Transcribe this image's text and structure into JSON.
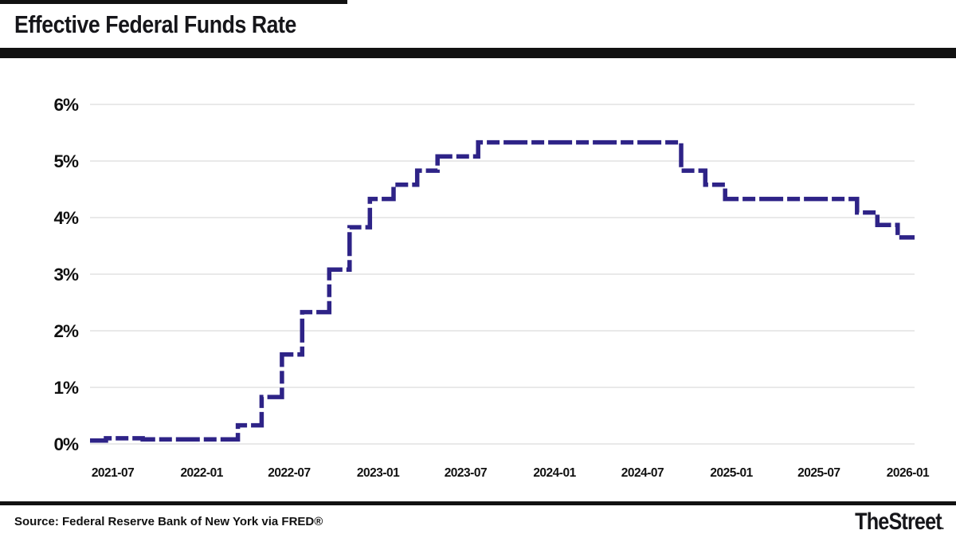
{
  "header": {
    "title": "Effective Federal Funds Rate"
  },
  "footer": {
    "source": "Source: Federal Reserve Bank of New York via FRED®",
    "brand": "TheStreet",
    "brand_dot": "."
  },
  "chart_data": {
    "type": "line",
    "step": true,
    "title": "Effective Federal Funds Rate",
    "xlabel": "",
    "ylabel": "",
    "ylim": [
      0,
      6
    ],
    "y_ticks": [
      {
        "value": 0,
        "label": "0%"
      },
      {
        "value": 1,
        "label": "1%"
      },
      {
        "value": 2,
        "label": "2%"
      },
      {
        "value": 3,
        "label": "3%"
      },
      {
        "value": 4,
        "label": "4%"
      },
      {
        "value": 5,
        "label": "5%"
      },
      {
        "value": 6,
        "label": "6%"
      }
    ],
    "x_range": [
      "2021-05-15",
      "2026-01-15"
    ],
    "x_ticks": [
      {
        "date": "2021-07-01",
        "label": "2021-07"
      },
      {
        "date": "2022-01-01",
        "label": "2022-01"
      },
      {
        "date": "2022-07-01",
        "label": "2022-07"
      },
      {
        "date": "2023-01-01",
        "label": "2023-01"
      },
      {
        "date": "2023-07-01",
        "label": "2023-07"
      },
      {
        "date": "2024-01-01",
        "label": "2024-01"
      },
      {
        "date": "2024-07-01",
        "label": "2024-07"
      },
      {
        "date": "2025-01-01",
        "label": "2025-01"
      },
      {
        "date": "2025-07-01",
        "label": "2025-07"
      },
      {
        "date": "2026-01-01",
        "label": "2026-01"
      }
    ],
    "series": [
      {
        "name": "Effective Federal Funds Rate (%)",
        "points": [
          [
            "2021-05-15",
            0.06
          ],
          [
            "2021-06-17",
            0.1
          ],
          [
            "2021-09-01",
            0.08
          ],
          [
            "2022-03-17",
            0.33
          ],
          [
            "2022-05-05",
            0.83
          ],
          [
            "2022-06-16",
            1.58
          ],
          [
            "2022-07-28",
            2.33
          ],
          [
            "2022-09-22",
            3.08
          ],
          [
            "2022-11-03",
            3.83
          ],
          [
            "2022-12-15",
            4.33
          ],
          [
            "2023-02-02",
            4.58
          ],
          [
            "2023-03-23",
            4.83
          ],
          [
            "2023-05-04",
            5.08
          ],
          [
            "2023-07-27",
            5.33
          ],
          [
            "2024-09-19",
            4.83
          ],
          [
            "2024-11-08",
            4.58
          ],
          [
            "2024-12-19",
            4.33
          ],
          [
            "2025-09-18",
            4.09
          ],
          [
            "2025-10-30",
            3.87
          ],
          [
            "2025-12-11",
            3.65
          ],
          [
            "2026-01-15",
            3.65
          ]
        ]
      }
    ],
    "legend": "none",
    "grid": "horizontal",
    "line_color": "#2e2387",
    "grid_color": "#dcdcdc",
    "line_width": 5.5,
    "dash_pattern": [
      30,
      5,
      16,
      5
    ]
  }
}
